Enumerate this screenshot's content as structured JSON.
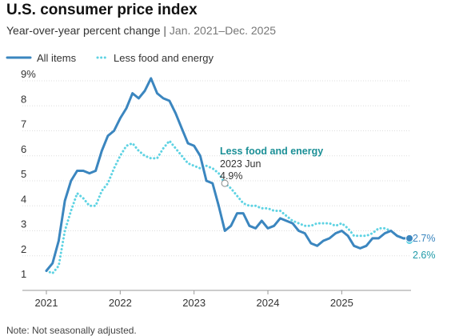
{
  "title": "U.S. consumer price index",
  "subtitle": {
    "main": "Year-over-year percent change",
    "separator": "|",
    "period": "Jan. 2021–Dec. 2025"
  },
  "note": "Note: Not seasonally adjusted.",
  "colors": {
    "all_items": "#3b86bf",
    "core": "#5fd3e3",
    "annotation_title": "#1b8f96",
    "gridline": "#dddddd",
    "axis": "#999999"
  },
  "chart_data": {
    "type": "line",
    "x_start": "2021-01",
    "x_end": "2025-12",
    "x_tick_labels": [
      "2021",
      "2022",
      "2023",
      "2024",
      "2025"
    ],
    "y_tick_labels": [
      "9%",
      "8",
      "7",
      "6",
      "5",
      "4",
      "3",
      "2",
      "1"
    ],
    "ylim": [
      1,
      9
    ],
    "grid": true,
    "legend_position": "top-left",
    "series": [
      {
        "name": "All items",
        "style": "solid",
        "values": [
          1.4,
          1.7,
          2.6,
          4.2,
          5.0,
          5.4,
          5.4,
          5.3,
          5.4,
          6.2,
          6.8,
          7.0,
          7.5,
          7.9,
          8.5,
          8.3,
          8.6,
          9.1,
          8.5,
          8.3,
          8.2,
          7.7,
          7.1,
          6.5,
          6.4,
          6.0,
          5.0,
          4.9,
          4.0,
          3.0,
          3.2,
          3.7,
          3.7,
          3.2,
          3.1,
          3.4,
          3.1,
          3.2,
          3.5,
          3.4,
          3.3,
          3.0,
          2.9,
          2.5,
          2.4,
          2.6,
          2.7,
          2.9,
          3.0,
          2.8,
          2.4,
          2.3,
          2.4,
          2.7,
          2.7,
          2.9,
          3.0,
          2.8,
          2.7,
          2.7
        ]
      },
      {
        "name": "Less food and energy",
        "style": "dotted",
        "values": [
          1.4,
          1.3,
          1.6,
          3.0,
          3.8,
          4.5,
          4.3,
          4.0,
          4.0,
          4.6,
          4.9,
          5.5,
          6.0,
          6.4,
          6.5,
          6.2,
          6.0,
          5.9,
          5.9,
          6.3,
          6.6,
          6.3,
          6.0,
          5.7,
          5.6,
          5.5,
          5.6,
          5.5,
          5.3,
          4.9,
          4.7,
          4.4,
          4.1,
          4.0,
          4.0,
          3.9,
          3.9,
          3.8,
          3.8,
          3.6,
          3.4,
          3.3,
          3.2,
          3.2,
          3.3,
          3.3,
          3.3,
          3.2,
          3.3,
          3.1,
          2.8,
          2.8,
          2.8,
          2.9,
          3.1,
          3.1,
          3.0,
          2.8,
          2.7,
          2.6
        ]
      }
    ],
    "annotation": {
      "series": "Less food and energy",
      "title": "Less food and energy",
      "date_label": "2023 Jun",
      "value_label": "4.9%",
      "month_index": 29
    },
    "end_labels": [
      {
        "series": "All items",
        "text": "2.7%"
      },
      {
        "series": "Less food and energy",
        "text": "2.6%"
      }
    ]
  }
}
